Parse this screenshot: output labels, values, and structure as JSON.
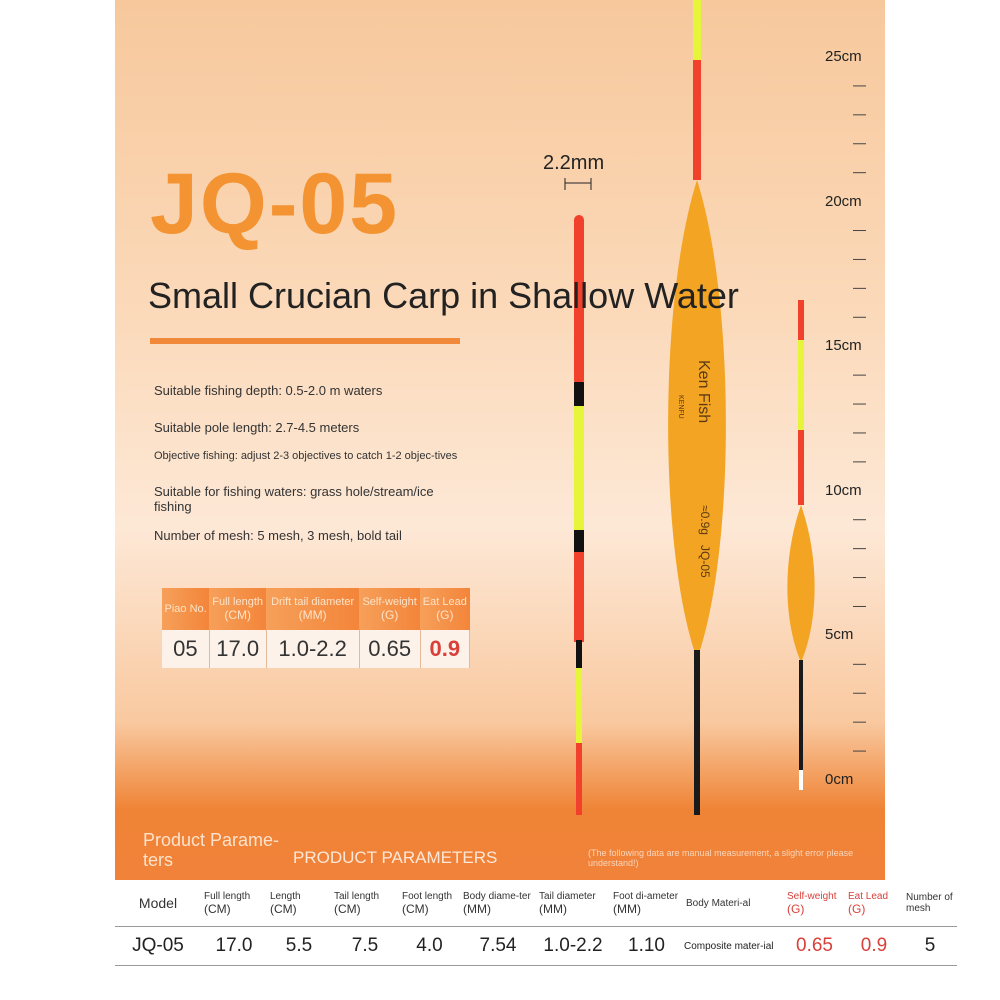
{
  "product": {
    "model": "JQ-05",
    "subtitle": "Small Crucian Carp in Shallow Water",
    "features": [
      "Suitable fishing depth: 0.5-2.0 m waters",
      "Suitable pole length: 2.7-4.5 meters",
      "Objective fishing: adjust 2-3 objectives to catch 1-2 objec-tives",
      "Suitable for fishing waters: grass hole/stream/ice fishing",
      "Number of mesh: 5 mesh, 3 mesh, bold tail"
    ],
    "tail_width": "2.2mm",
    "float_labels": {
      "brand": "Ken Fish",
      "brand_sub": "KENFU",
      "weight": "≈0.9g",
      "model": "JQ-05"
    }
  },
  "spec_card": {
    "header": [
      {
        "label": "Piao No."
      },
      {
        "label": "Full length",
        "unit": "(CM)"
      },
      {
        "label": "Drift tail diameter",
        "unit": "(MM)"
      },
      {
        "label": "Self-weight",
        "unit": "(G)"
      },
      {
        "label": "Eat Lead",
        "unit": "(G)"
      }
    ],
    "values": [
      "05",
      "17.0",
      "1.0-2.2",
      "0.65",
      "0.9"
    ]
  },
  "ruler": {
    "labels": [
      "25cm",
      "20cm",
      "15cm",
      "10cm",
      "5cm",
      "0cm"
    ]
  },
  "parameters": {
    "title": "Product Parame-ters",
    "title_caps": "PRODUCT PARAMETERS",
    "note": "(The following data are manual measurement, a slight error please understand!)",
    "header": [
      {
        "label": "Model"
      },
      {
        "label": "Full length",
        "unit": "(CM)"
      },
      {
        "label": "Length",
        "unit": "(CM)"
      },
      {
        "label": "Tail length",
        "unit": "(CM)"
      },
      {
        "label": "Foot length",
        "unit": "(CM)"
      },
      {
        "label": "Body diame-ter",
        "unit": "(MM)"
      },
      {
        "label": "Tail diameter",
        "unit": "(MM)"
      },
      {
        "label": "Foot di-ameter",
        "unit": "(MM)"
      },
      {
        "label": "Body Materi-al"
      },
      {
        "label": "Self-weight",
        "unit": "(G)"
      },
      {
        "label": "Eat Lead",
        "unit": "(G)"
      },
      {
        "label": "Number of mesh"
      }
    ],
    "row": [
      "JQ-05",
      "17.0",
      "5.5",
      "7.5",
      "4.0",
      "7.54",
      "1.0-2.2",
      "1.10",
      "Composite mater-ial",
      "0.65",
      "0.9",
      "5"
    ]
  }
}
